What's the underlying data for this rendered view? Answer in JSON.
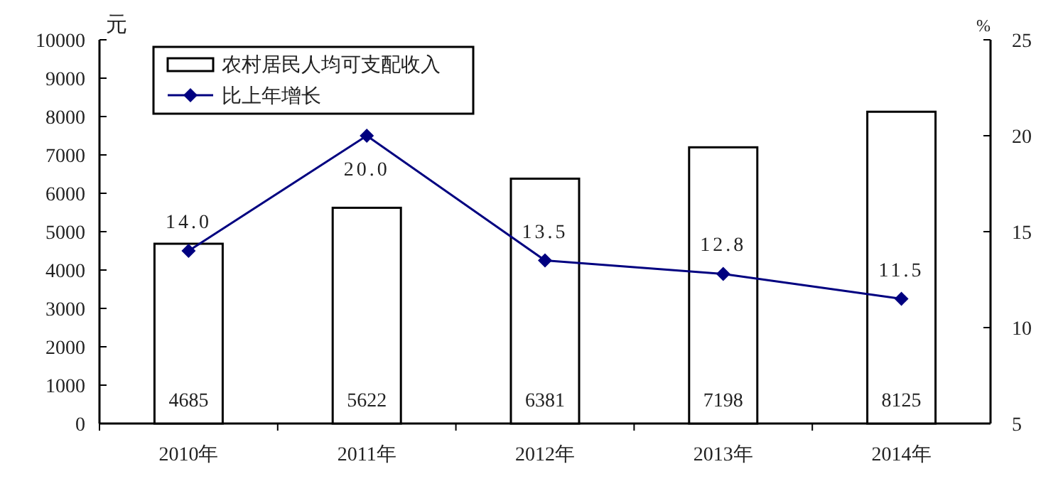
{
  "chart_data": {
    "type": "bar",
    "ylabel": "元",
    "y2label": "%",
    "categories": [
      "2010年",
      "2011年",
      "2012年",
      "2013年",
      "2014年"
    ],
    "series": [
      {
        "name": "农村居民人均可支配收入",
        "color": "#ffffff",
        "values": [
          4685,
          5622,
          6381,
          7198,
          8125
        ]
      },
      {
        "name": "比上年增长",
        "type": "line",
        "axis": "y2",
        "color": "#000080",
        "marker": "diamond",
        "values": [
          14.0,
          20.0,
          13.5,
          12.8,
          11.5
        ],
        "value_labels": [
          "14.0",
          "20.0",
          "13.5",
          "12.8",
          "11.5"
        ]
      }
    ],
    "data_labels": true,
    "ylim": [
      0,
      10000
    ],
    "yticks": [
      0,
      1000,
      2000,
      3000,
      4000,
      5000,
      6000,
      7000,
      8000,
      9000,
      10000
    ],
    "y2lim": [
      5,
      25
    ],
    "y2ticks": [
      5,
      10,
      15,
      20,
      25
    ],
    "legend": "top left",
    "grid": false
  }
}
